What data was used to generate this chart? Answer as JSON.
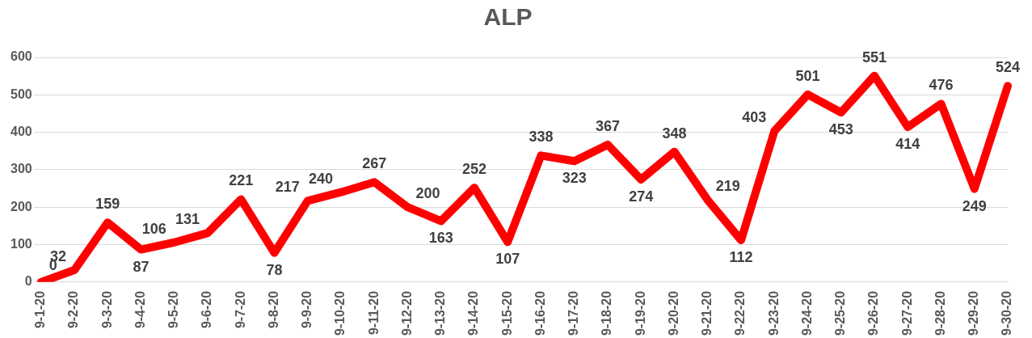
{
  "chart_data": {
    "type": "line",
    "title": "ALP",
    "categories": [
      "9-1-20",
      "9-2-20",
      "9-3-20",
      "9-4-20",
      "9-5-20",
      "9-6-20",
      "9-7-20",
      "9-8-20",
      "9-9-20",
      "9-10-20",
      "9-11-20",
      "9-12-20",
      "9-13-20",
      "9-14-20",
      "9-15-20",
      "9-16-20",
      "9-17-20",
      "9-18-20",
      "9-19-20",
      "9-20-20",
      "9-21-20",
      "9-22-20",
      "9-23-20",
      "9-24-20",
      "9-25-20",
      "9-26-20",
      "9-27-20",
      "9-28-20",
      "9-29-20",
      "9-30-20"
    ],
    "series": [
      {
        "color": "#ff0000",
        "values": [
          0,
          32,
          159,
          87,
          106,
          131,
          221,
          78,
          217,
          240,
          267,
          200,
          163,
          252,
          107,
          338,
          323,
          367,
          274,
          348,
          219,
          112,
          403,
          501,
          453,
          551,
          414,
          476,
          249,
          524
        ]
      }
    ],
    "ylim": [
      0,
      600
    ],
    "yticks": [
      0,
      100,
      200,
      300,
      400,
      500,
      600
    ],
    "grid": "y",
    "legend": false,
    "marker": "none",
    "line_style": "solid",
    "data_labels": true
  }
}
